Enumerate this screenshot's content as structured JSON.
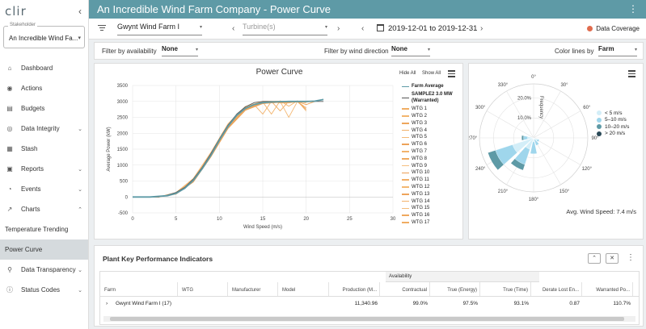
{
  "sidebar": {
    "logo": "clir",
    "collapse": "‹",
    "stakeholder_label": "Stakeholder",
    "stakeholder_value": "An Incredible Wind Fa...",
    "items": [
      {
        "label": "Dashboard",
        "icon": "⌂"
      },
      {
        "label": "Actions",
        "icon": "◉"
      },
      {
        "label": "Budgets",
        "icon": "▤"
      },
      {
        "label": "Data Integrity",
        "icon": "◎",
        "chevron": "⌄"
      },
      {
        "label": "Stash",
        "icon": "▦"
      },
      {
        "label": "Reports",
        "icon": "▣",
        "chevron": "⌄"
      },
      {
        "label": "Events",
        "icon": "◔",
        "chevron": "⌄"
      },
      {
        "label": "Charts",
        "icon": "↗",
        "chevron": "⌃"
      }
    ],
    "sub_items": [
      {
        "label": "Temperature Trending"
      },
      {
        "label": "Power Curve"
      }
    ],
    "items_bottom": [
      {
        "label": "Data Transparency",
        "icon": "⚲",
        "chevron": "⌄"
      },
      {
        "label": "Status Codes",
        "icon": "ⓘ",
        "chevron": "⌄"
      }
    ]
  },
  "header": {
    "title": "An Incredible Wind Farm Company - Power Curve",
    "menu": "⋮"
  },
  "toolbar": {
    "farm": "Gwynt Wind Farm I",
    "turbine_placeholder": "Turbine(s)",
    "date_range": "2019-12-01 to 2019-12-31",
    "coverage_label": "Data Coverage",
    "coverage_color": "#e06c4e",
    "prev": "‹",
    "next": "›",
    "caret": "▾"
  },
  "filters": {
    "availability_label": "Filter by availability",
    "availability_value": "None",
    "direction_label": "Filter by wind direction",
    "direction_value": "None",
    "color_label": "Color lines by",
    "color_value": "Farm"
  },
  "power_curve": {
    "title": "Power Curve",
    "hide_all": "Hide All",
    "show_all": "Show All"
  },
  "chart_data": [
    {
      "type": "line",
      "title": "Power Curve",
      "xlabel": "Wind Speed (m/s)",
      "ylabel": "Average Power (kW)",
      "xlim": [
        0,
        30
      ],
      "ylim": [
        -500,
        3500
      ],
      "x_ticks": [
        0,
        5,
        10,
        15,
        20,
        25,
        30
      ],
      "y_ticks": [
        -500,
        0,
        500,
        1000,
        1500,
        2000,
        2500,
        3000,
        3500
      ],
      "legend_position": "right",
      "series": [
        {
          "name": "Farm Average",
          "color": "#5e9aa6",
          "x": [
            0,
            2,
            4,
            5,
            6,
            7,
            8,
            9,
            10,
            11,
            12,
            13,
            14,
            15,
            16,
            17,
            18,
            19,
            20,
            21,
            22
          ],
          "y": [
            0,
            0,
            40,
            110,
            270,
            520,
            880,
            1300,
            1780,
            2220,
            2560,
            2780,
            2900,
            2960,
            2980,
            2990,
            3000,
            3000,
            3000,
            3010,
            3060
          ]
        },
        {
          "name": "SAMPLE2 3.0 MW (Warranted)",
          "color": "#555555",
          "x": [
            0,
            3,
            4,
            5,
            6,
            7,
            8,
            9,
            10,
            11,
            12,
            13,
            14,
            15,
            16,
            18,
            20,
            22
          ],
          "y": [
            0,
            0,
            60,
            140,
            300,
            560,
            920,
            1350,
            1820,
            2260,
            2600,
            2830,
            2960,
            3000,
            3000,
            3000,
            3000,
            3000
          ]
        },
        {
          "name": "WTG 1",
          "color": "#f0ad63",
          "x": [
            0,
            3,
            5,
            7,
            9,
            11,
            13,
            15,
            16,
            17,
            18,
            19,
            20
          ],
          "y": [
            0,
            0,
            100,
            500,
            1280,
            2200,
            2770,
            2980,
            3000,
            2700,
            3010,
            2990,
            2800
          ]
        },
        {
          "name": "WTG 2",
          "color": "#f3b56e",
          "x": [
            0,
            3,
            5,
            7,
            9,
            11,
            13,
            15,
            17,
            19,
            21
          ],
          "y": [
            0,
            10,
            120,
            540,
            1330,
            2250,
            2820,
            2990,
            3000,
            3000,
            3010
          ]
        },
        {
          "name": "WTG 3",
          "color": "#eea65c",
          "x": [
            0,
            3,
            5,
            7,
            9,
            11,
            13,
            15,
            17,
            19,
            20,
            21
          ],
          "y": [
            0,
            0,
            90,
            470,
            1250,
            2150,
            2720,
            2930,
            2980,
            2990,
            2900,
            3000
          ]
        },
        {
          "name": "WTG 4",
          "color": "#f1b068",
          "x": [
            0,
            3,
            5,
            7,
            9,
            11,
            13,
            14,
            15,
            16,
            17,
            18,
            19
          ],
          "y": [
            0,
            0,
            110,
            520,
            1310,
            2240,
            2790,
            2900,
            2600,
            3000,
            2950,
            2950,
            3000
          ]
        },
        {
          "name": "WTG 5",
          "color": "#f4ba78",
          "x": [
            0,
            3,
            5,
            7,
            9,
            11,
            13,
            15,
            17,
            18,
            19,
            20
          ],
          "y": [
            0,
            0,
            130,
            560,
            1360,
            2280,
            2830,
            3000,
            3000,
            2500,
            3000,
            2950
          ]
        },
        {
          "name": "WTG 6",
          "color": "#eda259",
          "x": [
            0,
            3,
            5,
            7,
            9,
            11,
            13,
            15,
            17,
            19
          ],
          "y": [
            0,
            0,
            100,
            480,
            1260,
            2170,
            2740,
            2950,
            2970,
            2980
          ]
        },
        {
          "name": "WTG 7",
          "color": "#f2b36b",
          "x": [
            0,
            3,
            5,
            7,
            9,
            11,
            13,
            15,
            16,
            17,
            18,
            19,
            20
          ],
          "y": [
            0,
            0,
            115,
            530,
            1320,
            2230,
            2800,
            2980,
            2600,
            3020,
            2850,
            3020,
            2700
          ]
        },
        {
          "name": "WTG 8",
          "color": "#efaa60",
          "x": [
            0,
            3,
            5,
            7,
            9,
            11,
            13,
            15,
            17,
            19,
            21
          ],
          "y": [
            0,
            0,
            105,
            510,
            1290,
            2200,
            2760,
            2960,
            2990,
            2990,
            3000
          ]
        },
        {
          "name": "WTG 9",
          "color": "#f5bf7f",
          "x": [
            0,
            3,
            5,
            7,
            9,
            11,
            13,
            15,
            17,
            19
          ],
          "y": [
            0,
            0,
            140,
            580,
            1390,
            2300,
            2840,
            3000,
            3010,
            3000
          ]
        },
        {
          "name": "WTG 10",
          "color": "#ec9f55",
          "x": [
            0,
            3,
            5,
            7,
            9,
            11,
            13,
            15,
            17,
            19,
            21
          ],
          "y": [
            0,
            0,
            95,
            490,
            1270,
            2180,
            2750,
            2940,
            2970,
            2980,
            2990
          ]
        },
        {
          "name": "WTG 11",
          "color": "#f1ae66",
          "x": [
            0,
            3,
            5,
            7,
            9,
            11,
            13,
            15,
            17,
            19
          ],
          "y": [
            0,
            0,
            110,
            515,
            1300,
            2210,
            2780,
            2970,
            3000,
            3000
          ]
        },
        {
          "name": "WTG 12",
          "color": "#f3b872",
          "x": [
            0,
            3,
            5,
            7,
            9,
            11,
            13,
            15,
            17,
            19
          ],
          "y": [
            0,
            0,
            125,
            545,
            1345,
            2260,
            2815,
            2990,
            3000,
            3000
          ]
        },
        {
          "name": "WTG 13",
          "color": "#eea45b",
          "x": [
            0,
            3,
            5,
            7,
            9,
            11,
            13,
            15,
            17,
            19,
            20
          ],
          "y": [
            0,
            0,
            100,
            495,
            1275,
            2190,
            2755,
            2955,
            2980,
            2990,
            2750
          ]
        },
        {
          "name": "WTG 14",
          "color": "#f2b16a",
          "x": [
            0,
            3,
            5,
            7,
            9,
            11,
            13,
            15,
            17,
            19
          ],
          "y": [
            0,
            0,
            112,
            525,
            1315,
            2225,
            2790,
            2975,
            2995,
            3000
          ]
        },
        {
          "name": "WTG 15",
          "color": "#f4bc7b",
          "x": [
            0,
            3,
            5,
            7,
            9,
            11,
            13,
            15,
            17,
            19
          ],
          "y": [
            0,
            0,
            135,
            570,
            1375,
            2290,
            2835,
            3000,
            3005,
            3000
          ]
        },
        {
          "name": "WTG 16",
          "color": "#efa85e",
          "x": [
            0,
            3,
            5,
            7,
            9,
            11,
            13,
            15,
            17,
            19
          ],
          "y": [
            0,
            0,
            102,
            505,
            1285,
            2195,
            2765,
            2960,
            2985,
            2990
          ]
        },
        {
          "name": "WTG 17",
          "color": "#f0ac62",
          "x": [
            0,
            3,
            5,
            7,
            9,
            11,
            13,
            15,
            17,
            19,
            21
          ],
          "y": [
            0,
            0,
            108,
            512,
            1295,
            2205,
            2775,
            2965,
            2990,
            2995,
            3000
          ]
        }
      ]
    },
    {
      "type": "polar-bar",
      "angular_ticks": [
        "0°",
        "30°",
        "60°",
        "90°",
        "120°",
        "150°",
        "180°",
        "210°",
        "240°",
        "270°",
        "300°",
        "330°"
      ],
      "radial_label": "Frequency",
      "radial_ticks": [
        "10.0%",
        "20.0%"
      ],
      "radial_tick_values": [
        10,
        20
      ],
      "radial_max": 27,
      "sector_width_deg": 30,
      "legend_position": "right",
      "series": [
        {
          "name": "< 5 m/s",
          "color": "#d3eef8",
          "values": [
            {
              "dir": 150,
              "freq": 1
            },
            {
              "dir": 180,
              "freq": 2
            },
            {
              "dir": 210,
              "freq": 6
            },
            {
              "dir": 240,
              "freq": 11
            },
            {
              "dir": 270,
              "freq": 3
            },
            {
              "dir": 120,
              "freq": 2
            }
          ]
        },
        {
          "name": "5–10 m/s",
          "color": "#9fd6ec",
          "values": [
            {
              "dir": 150,
              "freq": 4
            },
            {
              "dir": 180,
              "freq": 8
            },
            {
              "dir": 210,
              "freq": 14
            },
            {
              "dir": 240,
              "freq": 20
            },
            {
              "dir": 270,
              "freq": 5
            },
            {
              "dir": 120,
              "freq": 3
            }
          ]
        },
        {
          "name": "10–20 m/s",
          "color": "#5e9aa6",
          "values": [
            {
              "dir": 210,
              "freq": 17
            },
            {
              "dir": 240,
              "freq": 24
            },
            {
              "dir": 270,
              "freq": 6
            }
          ]
        },
        {
          "name": "> 20 m/s",
          "color": "#2b4a58",
          "values": []
        }
      ]
    }
  ],
  "polar": {
    "avg_speed_label": "Avg. Wind Speed:",
    "avg_speed_value": "7.4 m/s"
  },
  "kpi": {
    "title": "Plant Key Performance Indicators",
    "group_header": "Availability",
    "expand_btn": "⌃",
    "close_btn": "✕",
    "menu": "⋮",
    "columns": [
      "Farm",
      "WTG",
      "Manufacturer",
      "Model",
      "Production (M...",
      "Contractual",
      "True (Energy)",
      "True (Time)",
      "Derate Lost En...",
      "Warranted Po..."
    ],
    "rows": [
      {
        "expander": "›",
        "cells": [
          "Gwynt Wind Farm I (17)",
          "",
          "",
          "",
          "11,340.96",
          "99.0%",
          "97.5%",
          "93.1%",
          "0.87",
          "110.7%"
        ]
      }
    ]
  }
}
